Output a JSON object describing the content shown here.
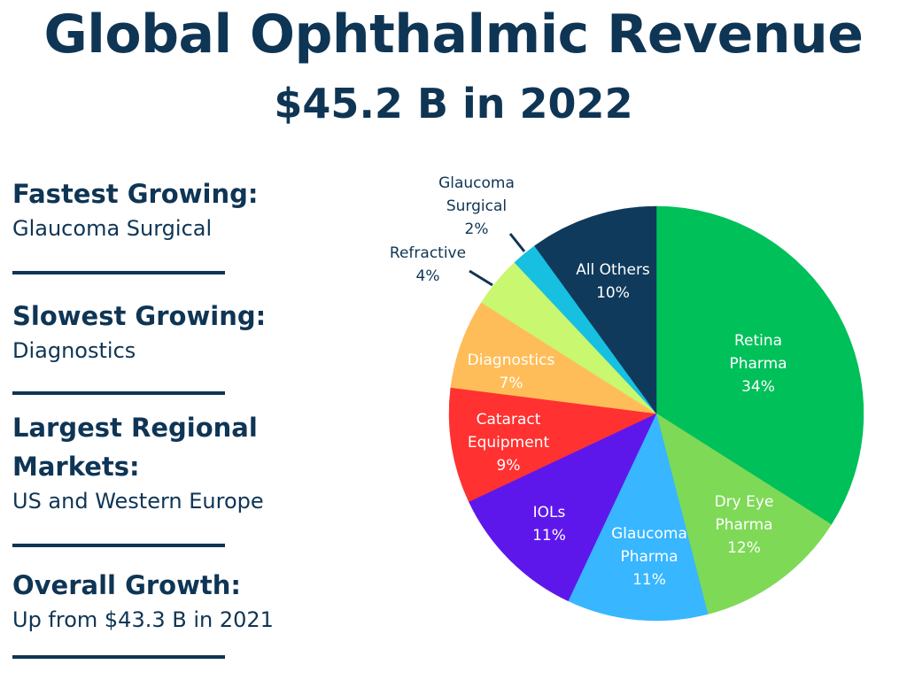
{
  "header": {
    "title": "Global Ophthalmic Revenue",
    "subtitle": "$45.2 B in 2022"
  },
  "facts": [
    {
      "heading": [
        "Fastest Growing:"
      ],
      "value": "Glaucoma Surgical"
    },
    {
      "heading": [
        "Slowest Growing:"
      ],
      "value": "Diagnostics"
    },
    {
      "heading": [
        "Largest Regional",
        "Markets:"
      ],
      "value": "US and Western Europe"
    },
    {
      "heading": [
        "Overall Growth:"
      ],
      "value": "Up from $43.3 B in 2021"
    }
  ],
  "colors": {
    "text": "#0f3555",
    "retina": "#00c05a",
    "dry_eye": "#7ed957",
    "glaucoma_pharma": "#38b6ff",
    "iols": "#5e17eb",
    "cataract": "#ff3131",
    "diagnostics": "#ffbd59",
    "refractive": "#c9f76f",
    "glaucoma_surgical": "#17c0e0",
    "all_others": "#0f3a5c"
  },
  "chart_data": {
    "type": "pie",
    "title": "Global Ophthalmic Revenue",
    "subtitle": "$45.2 B in 2022",
    "slices": [
      {
        "label": [
          "Retina",
          "Pharma"
        ],
        "value": 34,
        "pct": "34%",
        "color": "#00c05a",
        "text_color": "#ffffff",
        "outside": false
      },
      {
        "label": [
          "Dry Eye",
          "Pharma"
        ],
        "value": 12,
        "pct": "12%",
        "color": "#7ed957",
        "text_color": "#ffffff",
        "outside": false
      },
      {
        "label": [
          "Glaucoma",
          "Pharma"
        ],
        "value": 11,
        "pct": "11%",
        "color": "#38b6ff",
        "text_color": "#ffffff",
        "outside": false
      },
      {
        "label": [
          "IOLs"
        ],
        "value": 11,
        "pct": "11%",
        "color": "#5e17eb",
        "text_color": "#ffffff",
        "outside": false
      },
      {
        "label": [
          "Cataract",
          "Equipment"
        ],
        "value": 9,
        "pct": "9%",
        "color": "#ff3131",
        "text_color": "#ffffff",
        "outside": false
      },
      {
        "label": [
          "Diagnostics"
        ],
        "value": 7,
        "pct": "7%",
        "color": "#ffbd59",
        "text_color": "#ffffff",
        "outside": false
      },
      {
        "label": [
          "Refractive"
        ],
        "value": 4,
        "pct": "4%",
        "color": "#c9f76f",
        "text_color": "#0f3555",
        "outside": true
      },
      {
        "label": [
          "Glaucoma",
          "Surgical"
        ],
        "value": 2,
        "pct": "2%",
        "color": "#17c0e0",
        "text_color": "#0f3555",
        "outside": true
      },
      {
        "label": [
          "All Others"
        ],
        "value": 10,
        "pct": "10%",
        "color": "#0f3a5c",
        "text_color": "#ffffff",
        "outside": false
      }
    ]
  }
}
